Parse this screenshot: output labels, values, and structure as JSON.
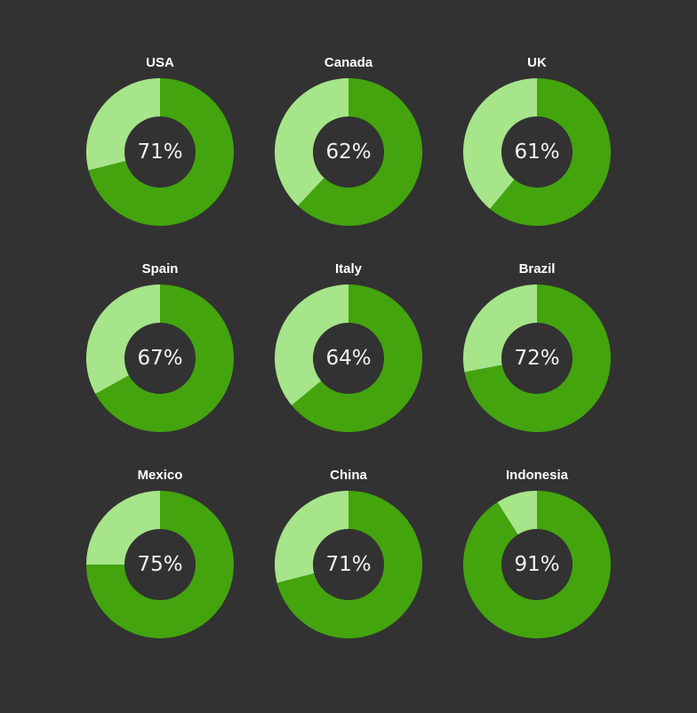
{
  "chart_data": {
    "type": "pie",
    "subtype": "donut-grid",
    "title": "",
    "colors": {
      "value": "#43A40E",
      "remainder": "#A6E58A",
      "background": "#323232",
      "label": "#FFFFFF"
    },
    "categories": [
      "USA",
      "Canada",
      "UK",
      "Spain",
      "Italy",
      "Brazil",
      "Mexico",
      "China",
      "Indonesia"
    ],
    "values": [
      71,
      62,
      61,
      67,
      64,
      72,
      75,
      71,
      91
    ],
    "charts": [
      {
        "title": "USA",
        "value": 71,
        "label": "71%"
      },
      {
        "title": "Canada",
        "value": 62,
        "label": "62%"
      },
      {
        "title": "UK",
        "value": 61,
        "label": "61%"
      },
      {
        "title": "Spain",
        "value": 67,
        "label": "67%"
      },
      {
        "title": "Italy",
        "value": 64,
        "label": "64%"
      },
      {
        "title": "Brazil",
        "value": 72,
        "label": "72%"
      },
      {
        "title": "Mexico",
        "value": 75,
        "label": "75%"
      },
      {
        "title": "China",
        "value": 71,
        "label": "71%"
      },
      {
        "title": "Indonesia",
        "value": 91,
        "label": "91%"
      }
    ]
  }
}
